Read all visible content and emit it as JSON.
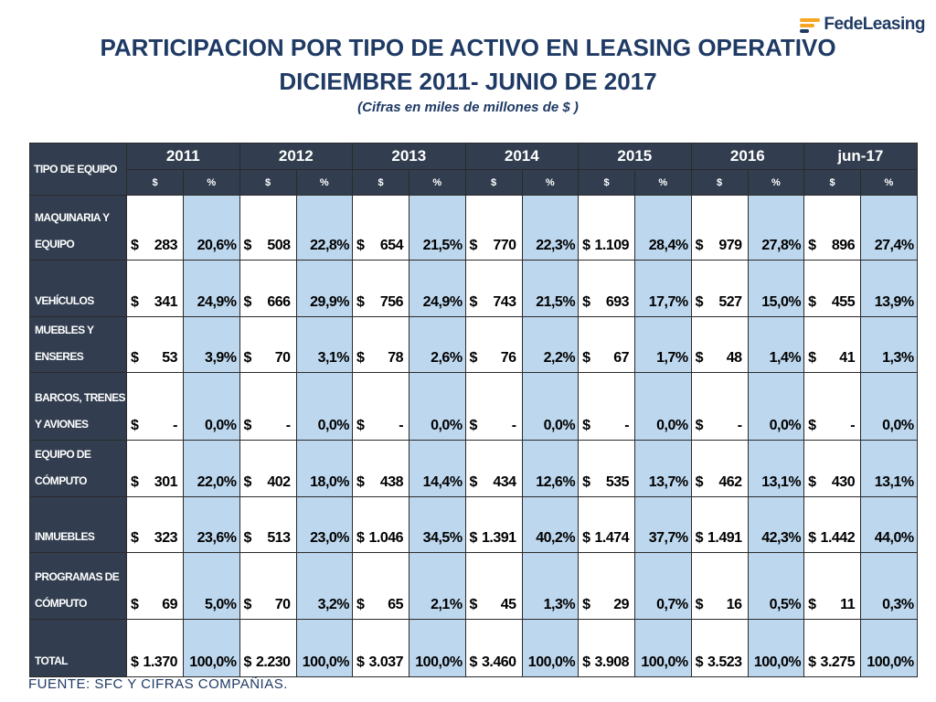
{
  "logo": {
    "text": "FedeLeasing"
  },
  "title": {
    "line1": "PARTICIPACION POR TIPO DE ACTIVO EN  LEASING OPERATIVO",
    "line2": "DICIEMBRE 2011- JUNIO DE 2017",
    "subtitle": "(Cifras en miles de millones de $ )"
  },
  "table": {
    "header_label": "TIPO DE EQUIPO",
    "years": [
      "2011",
      "2012",
      "2013",
      "2014",
      "2015",
      "2016",
      "jun-17"
    ],
    "sub_headers": {
      "amount": "$",
      "percent": "%"
    },
    "currency_symbol": "$",
    "rows": [
      {
        "label": "MAQUINARIA Y EQUIPO",
        "values": [
          {
            "amount": "283",
            "pct": "20,6%"
          },
          {
            "amount": "508",
            "pct": "22,8%"
          },
          {
            "amount": "654",
            "pct": "21,5%"
          },
          {
            "amount": "770",
            "pct": "22,3%"
          },
          {
            "amount": "1.109",
            "pct": "28,4%"
          },
          {
            "amount": "979",
            "pct": "27,8%"
          },
          {
            "amount": "896",
            "pct": "27,4%"
          }
        ]
      },
      {
        "label": "VEHÍCULOS",
        "values": [
          {
            "amount": "341",
            "pct": "24,9%"
          },
          {
            "amount": "666",
            "pct": "29,9%"
          },
          {
            "amount": "756",
            "pct": "24,9%"
          },
          {
            "amount": "743",
            "pct": "21,5%"
          },
          {
            "amount": "693",
            "pct": "17,7%"
          },
          {
            "amount": "527",
            "pct": "15,0%"
          },
          {
            "amount": "455",
            "pct": "13,9%"
          }
        ]
      },
      {
        "label": "MUEBLES Y ENSERES",
        "values": [
          {
            "amount": "53",
            "pct": "3,9%"
          },
          {
            "amount": "70",
            "pct": "3,1%"
          },
          {
            "amount": "78",
            "pct": "2,6%"
          },
          {
            "amount": "76",
            "pct": "2,2%"
          },
          {
            "amount": "67",
            "pct": "1,7%"
          },
          {
            "amount": "48",
            "pct": "1,4%"
          },
          {
            "amount": "41",
            "pct": "1,3%"
          }
        ]
      },
      {
        "label": "BARCOS, TRENES Y AVIONES",
        "values": [
          {
            "amount": "-",
            "pct": "0,0%"
          },
          {
            "amount": "-",
            "pct": "0,0%"
          },
          {
            "amount": "-",
            "pct": "0,0%"
          },
          {
            "amount": "-",
            "pct": "0,0%"
          },
          {
            "amount": "-",
            "pct": "0,0%"
          },
          {
            "amount": "-",
            "pct": "0,0%"
          },
          {
            "amount": "-",
            "pct": "0,0%"
          }
        ]
      },
      {
        "label": "EQUIPO DE CÓMPUTO",
        "values": [
          {
            "amount": "301",
            "pct": "22,0%"
          },
          {
            "amount": "402",
            "pct": "18,0%"
          },
          {
            "amount": "438",
            "pct": "14,4%"
          },
          {
            "amount": "434",
            "pct": "12,6%"
          },
          {
            "amount": "535",
            "pct": "13,7%"
          },
          {
            "amount": "462",
            "pct": "13,1%"
          },
          {
            "amount": "430",
            "pct": "13,1%"
          }
        ]
      },
      {
        "label": "INMUEBLES",
        "values": [
          {
            "amount": "323",
            "pct": "23,6%"
          },
          {
            "amount": "513",
            "pct": "23,0%"
          },
          {
            "amount": "1.046",
            "pct": "34,5%"
          },
          {
            "amount": "1.391",
            "pct": "40,2%"
          },
          {
            "amount": "1.474",
            "pct": "37,7%"
          },
          {
            "amount": "1.491",
            "pct": "42,3%"
          },
          {
            "amount": "1.442",
            "pct": "44,0%"
          }
        ]
      },
      {
        "label": "PROGRAMAS   DE CÓMPUTO",
        "values": [
          {
            "amount": "69",
            "pct": "5,0%"
          },
          {
            "amount": "70",
            "pct": "3,2%"
          },
          {
            "amount": "65",
            "pct": "2,1%"
          },
          {
            "amount": "45",
            "pct": "1,3%"
          },
          {
            "amount": "29",
            "pct": "0,7%"
          },
          {
            "amount": "16",
            "pct": "0,5%"
          },
          {
            "amount": "11",
            "pct": "0,3%"
          }
        ]
      },
      {
        "label": "TOTAL",
        "values": [
          {
            "amount": "1.370",
            "pct": "100,0%"
          },
          {
            "amount": "2.230",
            "pct": "100,0%"
          },
          {
            "amount": "3.037",
            "pct": "100,0%"
          },
          {
            "amount": "3.460",
            "pct": "100,0%"
          },
          {
            "amount": "3.908",
            "pct": "100,0%"
          },
          {
            "amount": "3.523",
            "pct": "100,0%"
          },
          {
            "amount": "3.275",
            "pct": "100,0%"
          }
        ]
      }
    ]
  },
  "footer": {
    "source": "FUENTE: SFC Y CIFRAS COMPAÑIAS."
  },
  "colors": {
    "header_bg": "#323e4f",
    "pct_bg": "#bdd7ee",
    "title": "#1f3a64",
    "logo_accent": "#f5a623"
  }
}
